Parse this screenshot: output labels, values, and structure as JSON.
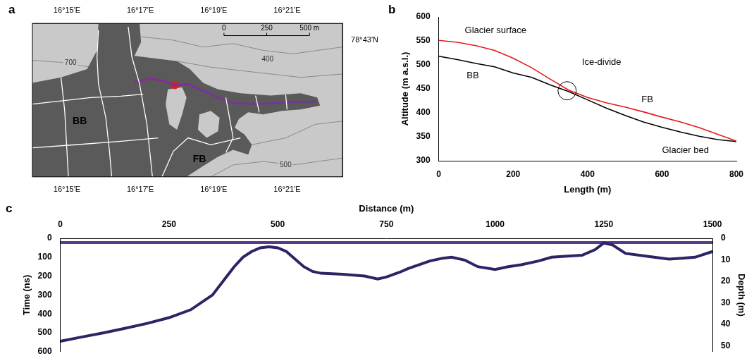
{
  "chart_data": [
    {
      "panel": "a",
      "type": "map",
      "xlim": [
        14.06,
        22.51
      ],
      "xticks": [
        {
          "value": 15,
          "label": "16°15'E"
        },
        {
          "value": 17,
          "label": "16°17'E"
        },
        {
          "value": 19,
          "label": "16°19'E"
        },
        {
          "value": 21,
          "label": "16°21'E"
        }
      ],
      "ylim": [
        42.52,
        43.06
      ],
      "yticks": [
        {
          "value": 43,
          "label": "78°43'N"
        }
      ],
      "glacier": {
        "color": "#5a5a5a",
        "points": [
          [
            14.06,
            42.851
          ],
          [
            14.84,
            42.87
          ],
          [
            15.55,
            42.899
          ],
          [
            15.82,
            42.965
          ],
          [
            15.86,
            43.06
          ],
          [
            16.98,
            43.06
          ],
          [
            17.02,
            42.994
          ],
          [
            16.84,
            42.946
          ],
          [
            17.39,
            42.937
          ],
          [
            18.0,
            42.927
          ],
          [
            18.35,
            42.899
          ],
          [
            18.71,
            42.851
          ],
          [
            19.12,
            42.828
          ],
          [
            19.73,
            42.814
          ],
          [
            20.55,
            42.806
          ],
          [
            21.37,
            42.814
          ],
          [
            21.82,
            42.799
          ],
          [
            21.9,
            42.771
          ],
          [
            21.37,
            42.757
          ],
          [
            20.86,
            42.752
          ],
          [
            20.35,
            42.74
          ],
          [
            19.94,
            42.747
          ],
          [
            19.69,
            42.724
          ],
          [
            19.57,
            42.693
          ],
          [
            19.84,
            42.669
          ],
          [
            20.04,
            42.633
          ],
          [
            19.94,
            42.598
          ],
          [
            19.53,
            42.615
          ],
          [
            19.12,
            42.591
          ],
          [
            18.71,
            42.558
          ],
          [
            18.26,
            42.52
          ],
          [
            14.06,
            42.52
          ]
        ]
      },
      "nunataks": {
        "color": "#c9c9c9",
        "areas": [
          [
            [
              17.75,
              42.828
            ],
            [
              18.14,
              42.835
            ],
            [
              18.26,
              42.799
            ],
            [
              18.14,
              42.74
            ],
            [
              18.0,
              42.686
            ],
            [
              17.79,
              42.705
            ],
            [
              17.69,
              42.776
            ]
          ],
          [
            [
              18.61,
              42.74
            ],
            [
              18.92,
              42.752
            ],
            [
              19.16,
              42.728
            ],
            [
              19.12,
              42.681
            ],
            [
              18.81,
              42.657
            ],
            [
              18.57,
              42.686
            ]
          ]
        ]
      },
      "contours": {
        "color": "#7a7a7a",
        "lines": [
          [
            [
              14.06,
              42.93
            ],
            [
              14.84,
              42.923
            ],
            [
              15.65,
              42.906
            ]
          ],
          [
            [
              17.02,
              43.013
            ],
            [
              17.9,
              43.001
            ],
            [
              18.71,
              42.977
            ],
            [
              19.53,
              42.989
            ],
            [
              20.35,
              42.965
            ],
            [
              21.16,
              42.953
            ],
            [
              22.51,
              42.977
            ]
          ],
          [
            [
              18.0,
              42.927
            ],
            [
              18.92,
              42.906
            ],
            [
              19.73,
              42.894
            ],
            [
              20.55,
              42.882
            ],
            [
              21.37,
              42.87
            ],
            [
              22.51,
              42.882
            ]
          ],
          [
            [
              20.04,
              42.633
            ],
            [
              20.96,
              42.657
            ],
            [
              21.77,
              42.705
            ],
            [
              22.51,
              42.716
            ]
          ],
          [
            [
              18.92,
              42.52
            ],
            [
              19.53,
              42.562
            ],
            [
              20.35,
              42.574
            ],
            [
              21.16,
              42.562
            ],
            [
              22.51,
              42.586
            ]
          ]
        ]
      },
      "contour_labels": [
        {
          "text": "700",
          "x": 15.1,
          "y": 42.92
        },
        {
          "text": "400",
          "x": 20.47,
          "y": 42.934
        },
        {
          "text": "500",
          "x": 20.96,
          "y": 42.562
        }
      ],
      "profiles": {
        "color": "#ffffff",
        "lines": [
          [
            [
              15.86,
              43.036
            ],
            [
              15.82,
              42.942
            ],
            [
              15.86,
              42.847
            ],
            [
              16.06,
              42.728
            ],
            [
              16.16,
              42.61
            ],
            [
              16.22,
              42.52
            ]
          ],
          [
            [
              16.67,
              43.048
            ],
            [
              16.77,
              42.942
            ],
            [
              16.98,
              42.847
            ],
            [
              17.18,
              42.705
            ],
            [
              17.33,
              42.52
            ]
          ],
          [
            [
              14.06,
              42.776
            ],
            [
              14.84,
              42.787
            ],
            [
              15.65,
              42.799
            ],
            [
              16.47,
              42.804
            ],
            [
              17.08,
              42.811
            ]
          ],
          [
            [
              14.06,
              42.622
            ],
            [
              15.24,
              42.633
            ],
            [
              16.47,
              42.645
            ],
            [
              17.49,
              42.657
            ]
          ],
          [
            [
              14.84,
              42.87
            ],
            [
              14.94,
              42.752
            ],
            [
              15.04,
              42.52
            ]
          ],
          [
            [
              17.59,
              42.52
            ],
            [
              17.9,
              42.61
            ],
            [
              18.3,
              42.657
            ],
            [
              18.92,
              42.633
            ],
            [
              19.73,
              42.657
            ]
          ],
          [
            [
              19.33,
              42.799
            ],
            [
              19.43,
              42.728
            ],
            [
              19.53,
              42.657
            ],
            [
              19.33,
              42.605
            ]
          ],
          [
            [
              20.14,
              42.806
            ],
            [
              20.24,
              42.747
            ]
          ],
          [
            [
              20.96,
              42.809
            ],
            [
              21.0,
              42.757
            ]
          ]
        ]
      },
      "track": [
        {
          "color": "#7b2fa0",
          "points": [
            [
              16.84,
              42.854
            ],
            [
              17.28,
              42.866
            ],
            [
              17.69,
              42.856
            ],
            [
              17.94,
              42.842
            ],
            [
              18.3,
              42.847
            ],
            [
              18.71,
              42.823
            ],
            [
              19.12,
              42.799
            ],
            [
              19.53,
              42.78
            ],
            [
              20.14,
              42.776
            ],
            [
              20.75,
              42.78
            ],
            [
              21.37,
              42.785
            ],
            [
              21.77,
              42.783
            ]
          ]
        },
        {
          "color": "#e41a1c",
          "points": [
            [
              16.84,
              42.854
            ],
            [
              17.28,
              42.866
            ],
            [
              17.69,
              42.856
            ],
            [
              17.94,
              42.842
            ],
            [
              18.3,
              42.847
            ]
          ]
        }
      ],
      "site": {
        "color": "#e41a1c",
        "x": 17.94,
        "y": 42.842
      },
      "annotations": [
        {
          "text": "BB",
          "x": 15.35,
          "y": 42.716
        },
        {
          "text": "FB",
          "x": 18.61,
          "y": 42.581
        }
      ],
      "scale_bar": {
        "ticks": [
          0,
          250,
          {
            "value": 500,
            "label": "500 m"
          }
        ],
        "x": [
          19.28,
          21.61
        ],
        "y": 43.017
      }
    },
    {
      "panel": "b",
      "type": "line",
      "x": [
        0,
        50,
        100,
        150,
        200,
        250,
        300,
        350,
        400,
        450,
        500,
        550,
        600,
        650,
        700,
        750,
        800
      ],
      "series": [
        {
          "color": "#e41a1c",
          "values": [
            551,
            547,
            540,
            530,
            514,
            494,
            470,
            447,
            432,
            421,
            412,
            402,
            391,
            381,
            369,
            355,
            341
          ]
        },
        {
          "color": "#000000",
          "values": [
            518,
            511,
            503,
            496,
            483,
            474,
            458,
            444,
            427,
            410,
            395,
            381,
            370,
            360,
            351,
            344,
            340
          ]
        }
      ],
      "xlim": [
        0,
        800
      ],
      "xticks": [
        0,
        200,
        400,
        600,
        800
      ],
      "ylim": [
        300,
        600
      ],
      "yticks": [
        300,
        350,
        400,
        450,
        500,
        550,
        600
      ],
      "x_label": "Length (m)",
      "y_label": "Altitude (m a.s.l.)",
      "grid": false,
      "annotations": [
        {
          "text": "Glacier surface",
          "x": 70,
          "y": 572
        },
        {
          "text": "BB",
          "x": 75,
          "y": 478
        },
        {
          "text": "Ice-divide",
          "x": 385,
          "y": 505,
          "circle": {
            "x": 345,
            "y": 446
          }
        },
        {
          "text": "FB",
          "x": 545,
          "y": 428
        },
        {
          "text": "Glacier bed",
          "x": 600,
          "y": 322
        }
      ]
    },
    {
      "panel": "c",
      "type": "line",
      "series": [
        {
          "color": "#2d2466",
          "x": [
            0,
            50,
            100,
            150,
            200,
            250,
            300,
            350,
            380,
            400,
            420,
            440,
            460,
            480,
            500,
            520,
            540,
            560,
            580,
            600,
            650,
            700,
            730,
            750,
            780,
            800,
            850,
            880,
            900,
            930,
            960,
            1000,
            1030,
            1060,
            1100,
            1130,
            1160,
            1200,
            1230,
            1250,
            1270,
            1300,
            1350,
            1400,
            1430,
            1460,
            1500
          ],
          "values": [
            545,
            522,
            500,
            476,
            450,
            420,
            378,
            300,
            210,
            150,
            100,
            70,
            50,
            45,
            50,
            70,
            110,
            150,
            175,
            185,
            190,
            200,
            215,
            205,
            180,
            160,
            120,
            105,
            100,
            115,
            150,
            165,
            150,
            140,
            120,
            100,
            95,
            90,
            60,
            25,
            35,
            80,
            95,
            110,
            105,
            100,
            70
          ]
        },
        {
          "color": "#5b3a8c",
          "x": [
            0,
            1500
          ],
          "values": [
            22,
            22
          ]
        }
      ],
      "xlim": [
        0,
        1500
      ],
      "xticks": [
        0,
        250,
        500,
        750,
        1000,
        1250,
        1500
      ],
      "ylim": [
        600,
        0
      ],
      "yticks": [
        0,
        100,
        200,
        300,
        400,
        500,
        600
      ],
      "y2lim": [
        52.7,
        0
      ],
      "y2ticks": [
        0,
        10,
        20,
        30,
        40,
        50
      ],
      "x_label": "Distance (m)",
      "y_label": "Time (ns)",
      "y2_label": "Depth (m)",
      "grid": false
    }
  ]
}
